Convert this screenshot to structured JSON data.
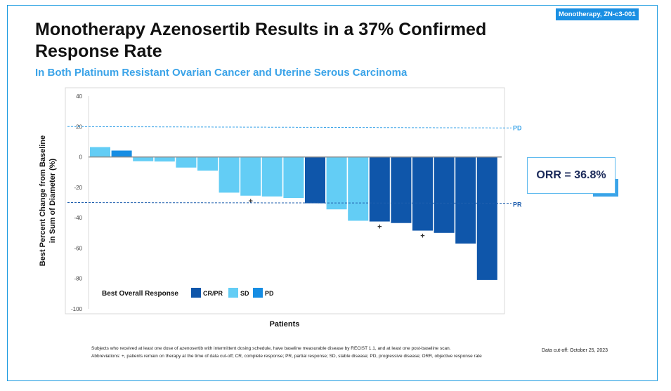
{
  "badge": "Monotherapy, ZN-c3-001",
  "title": "Monotherapy Azenosertib Results in a 37% Confirmed Response Rate",
  "subtitle": "In Both Platinum Resistant Ovarian Cancer and Uterine Serous Carcinoma",
  "orr": "ORR = 36.8%",
  "footnotes": [
    "Subjects who received at least one dose of azenosertib with intermittent dosing schedule, have baseline measurable disease by RECIST 1.1, and at least one post-baseline scan.",
    "Abbreviations: +, patients remain on therapy at the time of data cut-off; CR, complete response; PR, partial response; SD, stable disease; PD, progressive disease; ORR, objective response rate"
  ],
  "data_cutoff": "Data cut-off: October 25, 2023",
  "colors": {
    "CR/PR": "#0f56aa",
    "SD": "#63cdf5",
    "PD": "#168de3",
    "accent": "#1a9ae0"
  },
  "chart_data": {
    "type": "bar",
    "title": "",
    "xlabel": "Patients",
    "ylabel": "Best Percent Change from Baseline in Sum of Diameter (%)",
    "ylim": [
      -100,
      40
    ],
    "yticks": [
      "40",
      "20",
      "0",
      "-20",
      "-40",
      "-60",
      "-80",
      "-100"
    ],
    "grid": false,
    "legend": {
      "title": "Best Overall Response",
      "entries": [
        "CR/PR",
        "SD",
        "PD"
      ],
      "position": "bottom-left"
    },
    "reference_lines": [
      {
        "label": "PD",
        "value": 20
      },
      {
        "label": "PR",
        "value": -30
      }
    ],
    "annotation_marker": "+",
    "bars": [
      {
        "value": 6.5,
        "response": "SD",
        "on_therapy": false
      },
      {
        "value": 4.2,
        "response": "PD",
        "on_therapy": false
      },
      {
        "value": -2.8,
        "response": "SD",
        "on_therapy": false
      },
      {
        "value": -3,
        "response": "SD",
        "on_therapy": false
      },
      {
        "value": -7,
        "response": "SD",
        "on_therapy": false
      },
      {
        "value": -9,
        "response": "SD",
        "on_therapy": false
      },
      {
        "value": -23.5,
        "response": "SD",
        "on_therapy": false
      },
      {
        "value": -25.5,
        "response": "SD",
        "on_therapy": true
      },
      {
        "value": -26,
        "response": "SD",
        "on_therapy": false
      },
      {
        "value": -27,
        "response": "SD",
        "on_therapy": false
      },
      {
        "value": -30.5,
        "response": "CR/PR",
        "on_therapy": false
      },
      {
        "value": -34.5,
        "response": "SD",
        "on_therapy": false
      },
      {
        "value": -42,
        "response": "SD",
        "on_therapy": false
      },
      {
        "value": -42.5,
        "response": "CR/PR",
        "on_therapy": true
      },
      {
        "value": -43.5,
        "response": "CR/PR",
        "on_therapy": false
      },
      {
        "value": -48.5,
        "response": "CR/PR",
        "on_therapy": true
      },
      {
        "value": -50,
        "response": "CR/PR",
        "on_therapy": false
      },
      {
        "value": -57,
        "response": "CR/PR",
        "on_therapy": false
      },
      {
        "value": -81,
        "response": "CR/PR",
        "on_therapy": false
      }
    ]
  }
}
